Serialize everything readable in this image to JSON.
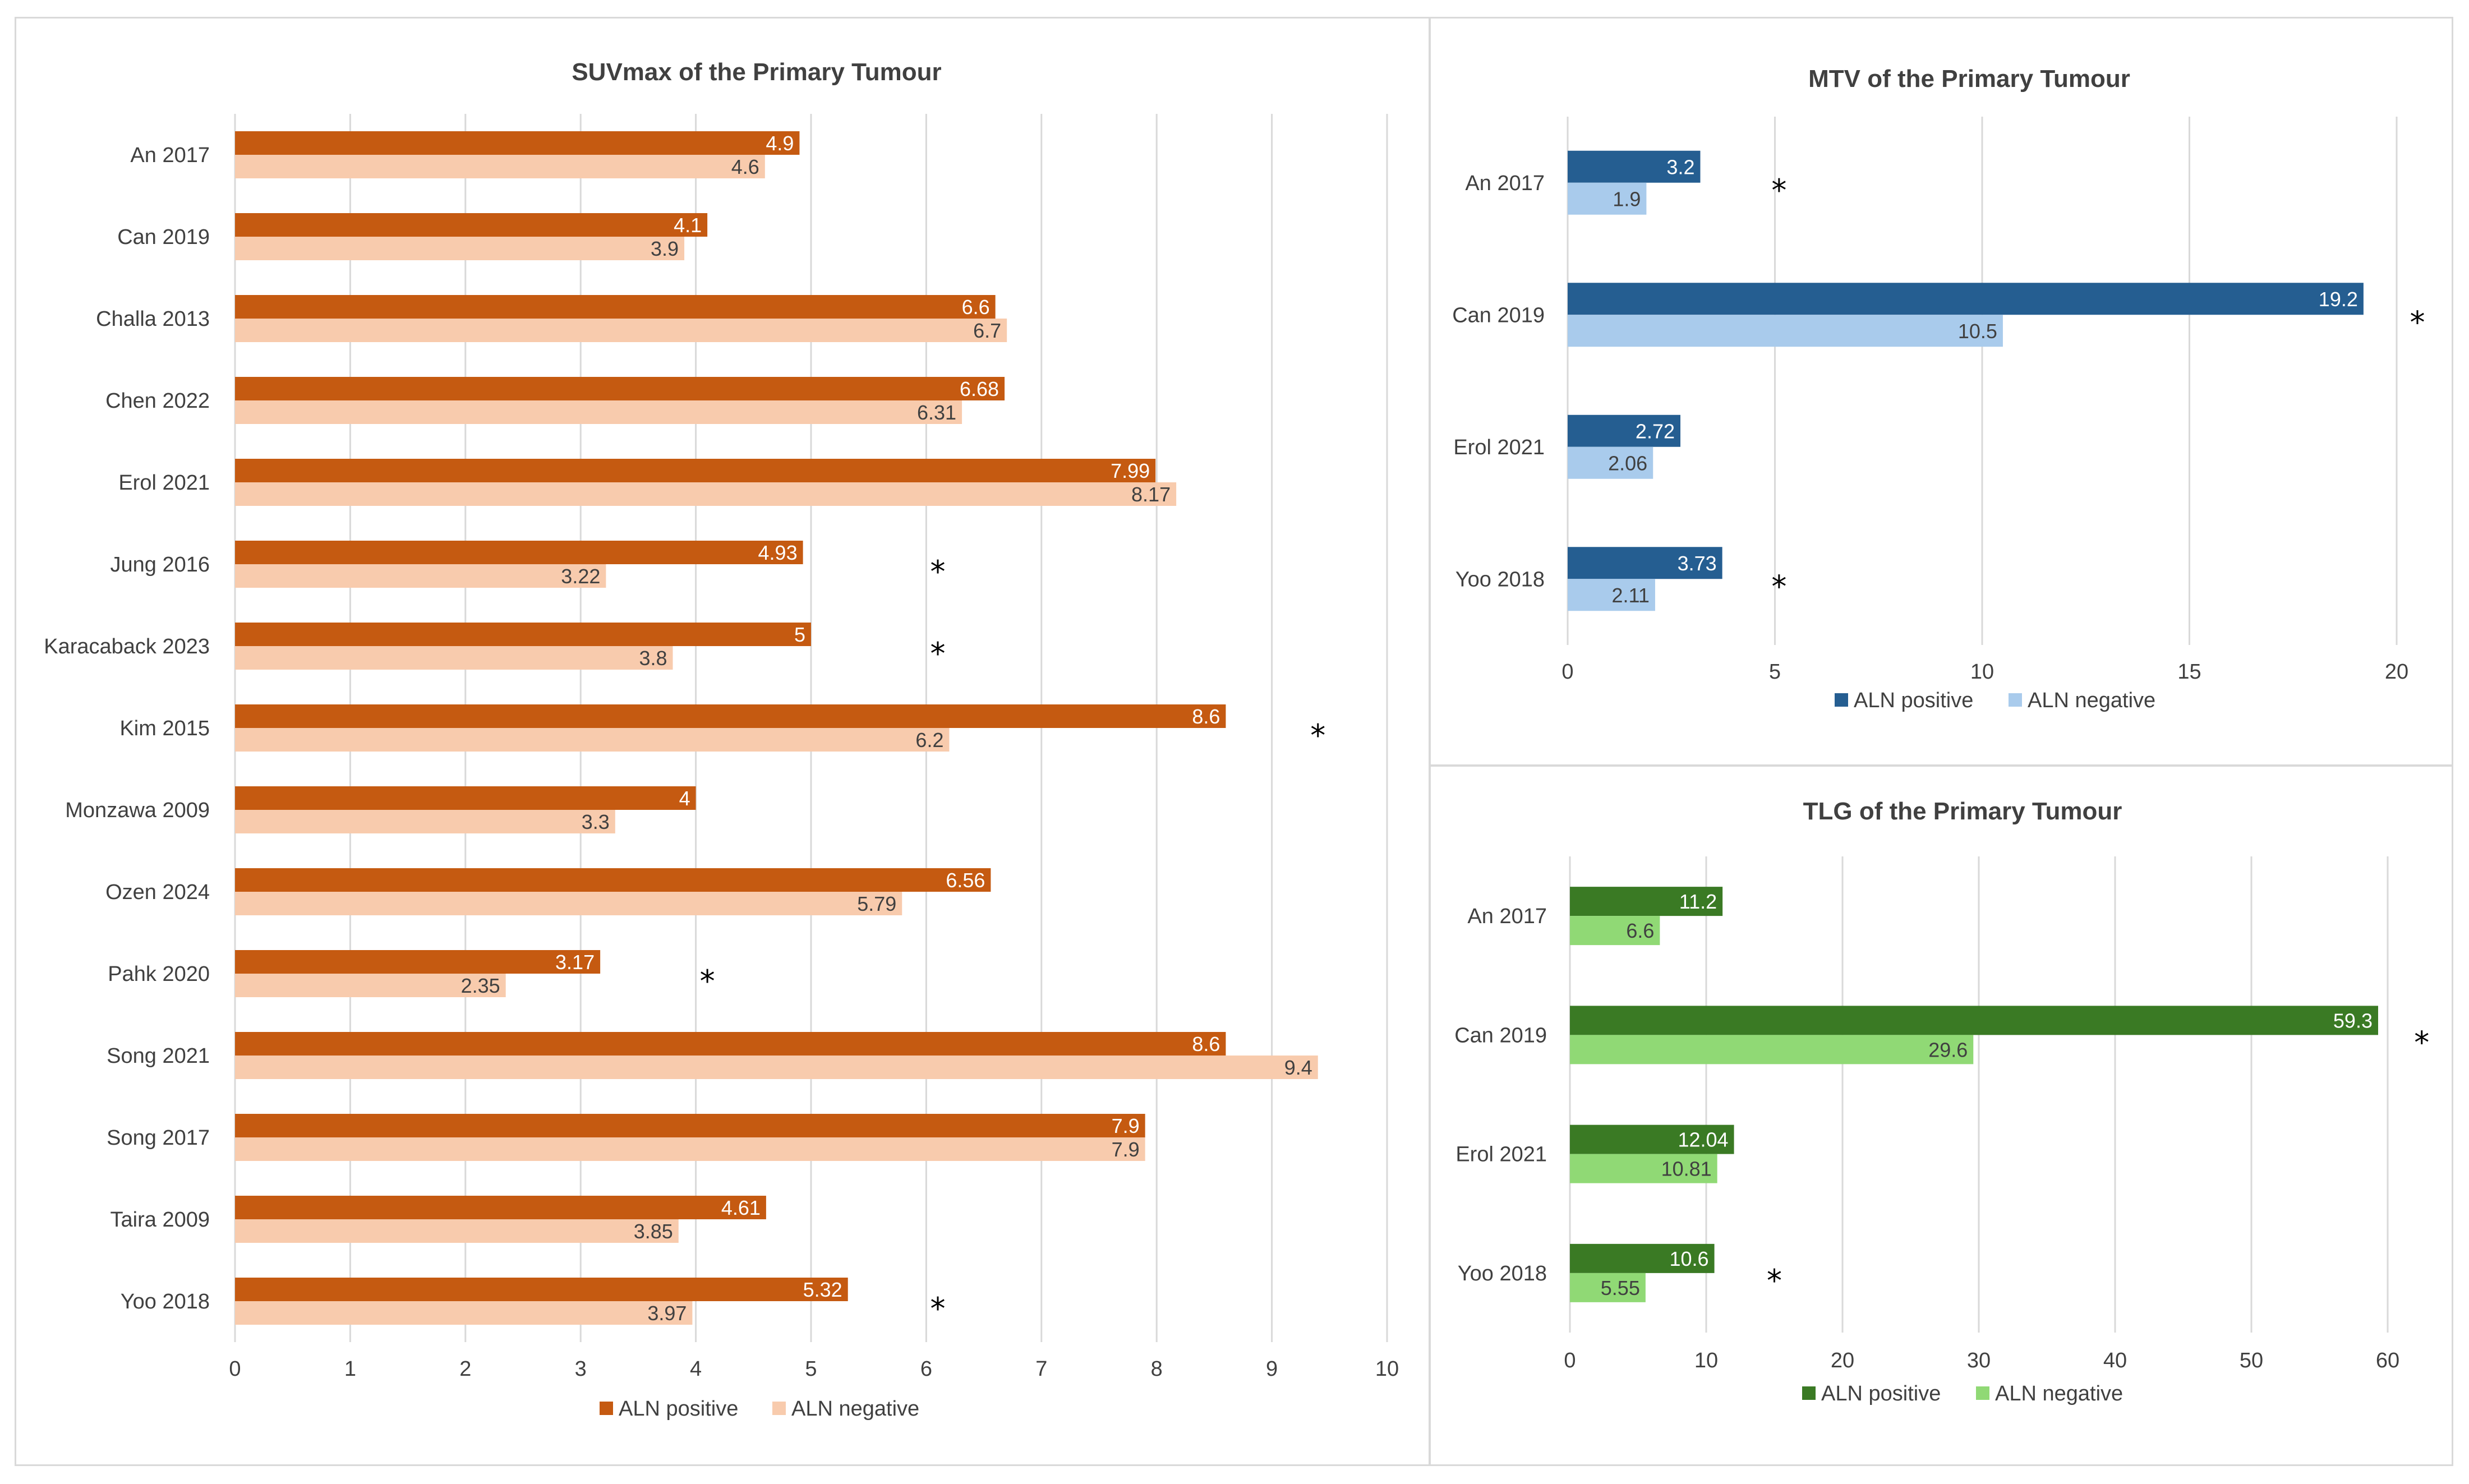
{
  "chart_data": [
    {
      "id": "suv",
      "type": "bar",
      "orientation": "horizontal",
      "title": "SUVmax of the Primary Tumour",
      "categories": [
        "An 2017",
        "Can 2019",
        "Challa 2013",
        "Chen 2022",
        "Erol 2021",
        "Jung 2016",
        "Karacaback 2023",
        "Kim 2015",
        "Monzawa 2009",
        "Ozen 2024",
        "Pahk 2020",
        "Song 2021",
        "Song 2017",
        "Taira 2009",
        "Yoo 2018"
      ],
      "series": [
        {
          "name": "ALN positive",
          "color": "#c55a11",
          "label_color": "#ffffff",
          "values": [
            4.9,
            4.1,
            6.6,
            6.68,
            7.99,
            4.93,
            5,
            8.6,
            4,
            6.56,
            3.17,
            8.6,
            7.9,
            4.61,
            5.32
          ]
        },
        {
          "name": "ALN negative",
          "color": "#f8cbad",
          "label_color": "#404040",
          "values": [
            4.6,
            3.9,
            6.7,
            6.31,
            8.17,
            3.22,
            3.8,
            6.2,
            3.3,
            5.79,
            2.35,
            9.4,
            7.9,
            3.85,
            3.97
          ]
        }
      ],
      "xlim": [
        0,
        10
      ],
      "xticks": [
        0,
        1,
        2,
        3,
        4,
        5,
        6,
        7,
        8,
        9,
        10
      ],
      "grid": true,
      "legend_position": "bottom",
      "significance_marker": "*",
      "significance": [
        {
          "category": "Jung 2016",
          "x": 6.1
        },
        {
          "category": "Karacaback 2023",
          "x": 6.1
        },
        {
          "category": "Kim 2015",
          "x": 9.4
        },
        {
          "category": "Pahk 2020",
          "x": 4.1
        },
        {
          "category": "Yoo 2018",
          "x": 6.1
        }
      ]
    },
    {
      "id": "mtv",
      "type": "bar",
      "orientation": "horizontal",
      "title": "MTV of the Primary Tumour",
      "categories": [
        "An 2017",
        "Can 2019",
        "Erol 2021",
        "Yoo 2018"
      ],
      "series": [
        {
          "name": "ALN positive",
          "color": "#255e91",
          "label_color": "#ffffff",
          "values": [
            3.2,
            19.2,
            2.72,
            3.73
          ]
        },
        {
          "name": "ALN negative",
          "color": "#a9cbec",
          "label_color": "#404040",
          "values": [
            1.9,
            10.5,
            2.06,
            2.11
          ]
        }
      ],
      "xlim": [
        0,
        20
      ],
      "xticks": [
        0,
        5,
        10,
        15,
        20
      ],
      "grid": true,
      "legend_position": "bottom",
      "significance_marker": "*",
      "significance": [
        {
          "category": "An 2017",
          "x": 5.1
        },
        {
          "category": "Can 2019",
          "x": 20.5
        },
        {
          "category": "Yoo 2018",
          "x": 5.1
        }
      ]
    },
    {
      "id": "tlg",
      "type": "bar",
      "orientation": "horizontal",
      "title": "TLG of the Primary Tumour",
      "categories": [
        "An 2017",
        "Can 2019",
        "Erol 2021",
        "Yoo 2018"
      ],
      "series": [
        {
          "name": "ALN positive",
          "color": "#3a7a24",
          "label_color": "#ffffff",
          "values": [
            11.2,
            59.3,
            12.04,
            10.6
          ]
        },
        {
          "name": "ALN negative",
          "color": "#90d975",
          "label_color": "#404040",
          "values": [
            6.6,
            29.6,
            10.81,
            5.55
          ]
        }
      ],
      "xlim": [
        0,
        60
      ],
      "xticks": [
        0,
        10,
        20,
        30,
        40,
        50,
        60
      ],
      "grid": true,
      "legend_position": "bottom",
      "significance_marker": "*",
      "significance": [
        {
          "category": "Can 2019",
          "x": 62.5
        },
        {
          "category": "Yoo 2018",
          "x": 15
        }
      ]
    }
  ]
}
